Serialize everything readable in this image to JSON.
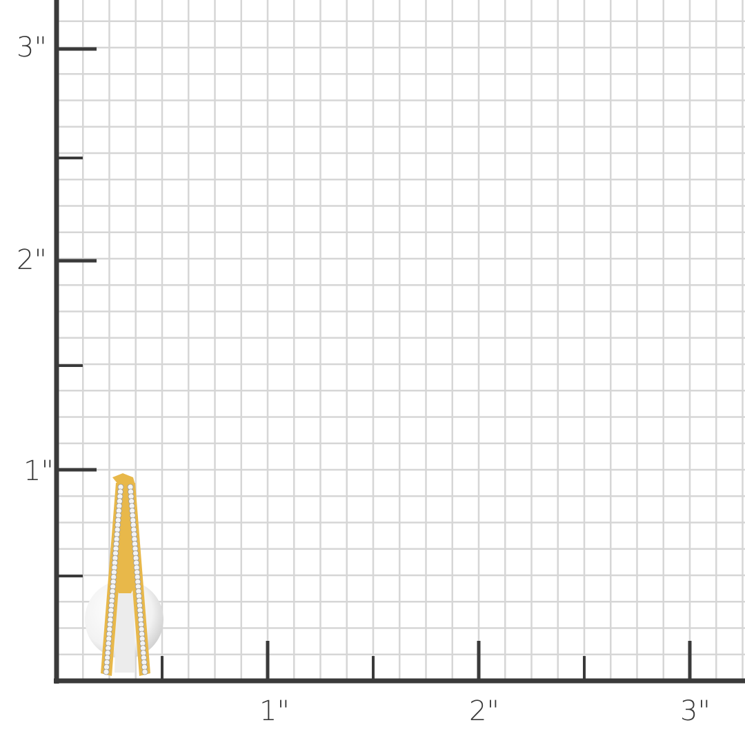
{
  "ruler": {
    "unit_mark": "\"",
    "x_labels": [
      "1\"",
      "2\"",
      "3\""
    ],
    "y_labels": [
      "1\"",
      "2\"",
      "3\""
    ],
    "subdivisions_per_inch": 8,
    "grid_color": "#d6d6d6",
    "axis_color": "#3a3a3a"
  },
  "product": {
    "type": "earring",
    "metal_color": "#e8b84a",
    "pearl_color": "#f2f2f2",
    "height_inches": 0.97
  }
}
